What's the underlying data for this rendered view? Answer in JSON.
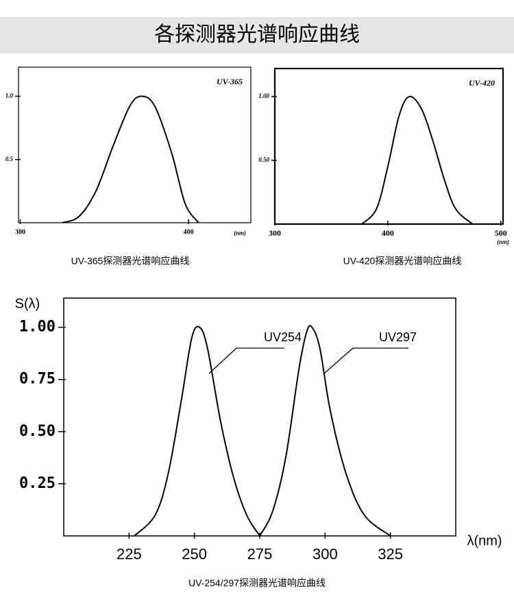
{
  "title": "各探测器光谱响应曲线",
  "chart_data": [
    {
      "type": "line",
      "caption": "UV-365探测器光谱响应曲线",
      "x_label": "(nm)",
      "x": [
        325,
        335,
        345,
        355,
        365,
        372,
        380,
        390,
        398,
        406
      ],
      "series": [
        {
          "name": "UV-365",
          "color": "#000000",
          "values": [
            0,
            0.05,
            0.25,
            0.6,
            0.92,
            1.0,
            0.92,
            0.55,
            0.15,
            0
          ]
        }
      ],
      "xlim": [
        299,
        437
      ],
      "ylim": [
        0,
        1.23
      ],
      "xticks": [
        300,
        400
      ],
      "yticks": [
        0.5,
        {
          "value": 1,
          "label": "1.0"
        }
      ]
    },
    {
      "type": "line",
      "caption": "UV-420探测器光谱响应曲线",
      "x_label": "(nm)",
      "x": [
        377,
        390,
        400,
        410,
        419,
        430,
        440,
        450,
        460,
        475
      ],
      "series": [
        {
          "name": "UV-420",
          "color": "#000000",
          "values": [
            0,
            0.12,
            0.45,
            0.85,
            1.0,
            0.9,
            0.65,
            0.35,
            0.12,
            0
          ]
        }
      ],
      "xlim": [
        300,
        502
      ],
      "ylim": [
        0,
        1.22
      ],
      "xticks": [
        300,
        400,
        500
      ],
      "yticks": [
        {
          "value": 0.5,
          "label": "0.50"
        },
        {
          "value": 1,
          "label": "1.00"
        }
      ]
    },
    {
      "type": "line",
      "caption": "UV-254/297探测器光谱响应曲线",
      "x_label": "λ(nm)",
      "y_label": "S(λ)",
      "x": [
        227,
        235,
        240,
        245,
        249,
        252,
        255,
        260,
        265,
        270,
        275,
        280,
        285,
        290,
        293,
        295,
        298,
        302,
        308,
        315,
        325
      ],
      "series": [
        {
          "name": "UV254",
          "color": "#000000",
          "values": [
            0,
            0.1,
            0.3,
            0.65,
            0.95,
            1.0,
            0.9,
            0.55,
            0.28,
            0.1,
            0,
            null,
            null,
            null,
            null,
            null,
            null,
            null,
            null,
            null,
            null
          ]
        },
        {
          "name": "UV297",
          "color": "#000000",
          "values": [
            null,
            null,
            null,
            null,
            null,
            null,
            null,
            null,
            null,
            null,
            0,
            0.12,
            0.38,
            0.8,
            0.98,
            1.0,
            0.9,
            0.6,
            0.3,
            0.1,
            0
          ]
        }
      ],
      "xlim": [
        200,
        350
      ],
      "ylim": [
        0,
        1.14
      ],
      "xticks": [
        225,
        250,
        275,
        300,
        325
      ],
      "yticks": [
        0.25,
        {
          "value": 0.5,
          "label": "0.50"
        },
        0.75,
        {
          "value": 1,
          "label": "1.00"
        }
      ]
    }
  ]
}
